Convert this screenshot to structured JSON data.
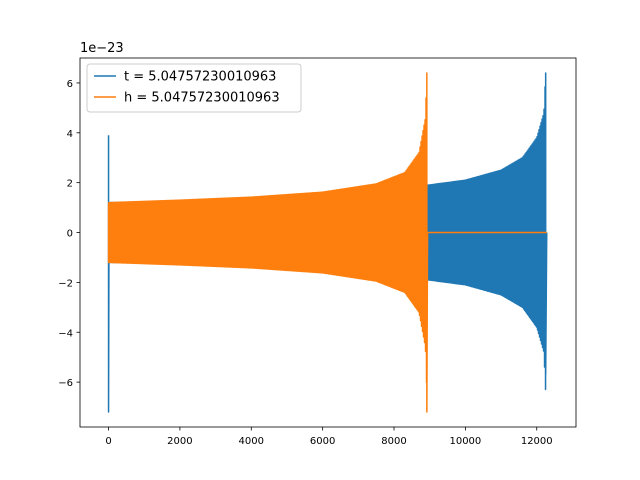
{
  "chart_data": {
    "type": "line",
    "title": "",
    "xlabel": "",
    "ylabel": "",
    "y_offset_text": "1e−23",
    "xlim": [
      -800,
      13100
    ],
    "ylim": [
      -7.8,
      7.0
    ],
    "x_ticks": [
      0,
      2000,
      4000,
      6000,
      8000,
      10000,
      12000
    ],
    "x_tick_labels": [
      "0",
      "2000",
      "4000",
      "6000",
      "8000",
      "10000",
      "12000"
    ],
    "y_ticks": [
      -6,
      -4,
      -2,
      0,
      2,
      4,
      6
    ],
    "y_tick_labels": [
      "−6",
      "−4",
      "−2",
      "0",
      "2",
      "4",
      "6"
    ],
    "grid": false,
    "legend_position": "upper-left",
    "series": [
      {
        "name": "t = 5.04757230010963",
        "color": "#1f77b4",
        "kind": "oscillating-envelope",
        "x_start": 0,
        "x_end": 12280,
        "initial_spike": {
          "x": 0,
          "max": 3.9,
          "min": -7.2
        },
        "envelope": [
          [
            0,
            1.2
          ],
          [
            2000,
            1.26
          ],
          [
            4000,
            1.35
          ],
          [
            6000,
            1.5
          ],
          [
            8000,
            1.72
          ],
          [
            10000,
            2.1
          ],
          [
            11000,
            2.5
          ],
          [
            11600,
            3.0
          ],
          [
            12000,
            3.8
          ],
          [
            12200,
            4.8
          ]
        ],
        "peak": {
          "x": 12250,
          "max": 6.4,
          "min": -5.7
        }
      },
      {
        "name": "h = 5.04757230010963",
        "color": "#ff7f0e",
        "kind": "oscillating-envelope",
        "x_start": 0,
        "x_end": 8940,
        "initial_spike": {
          "x": 0,
          "max": 1.2,
          "min": -1.2
        },
        "envelope": [
          [
            0,
            1.2
          ],
          [
            2000,
            1.3
          ],
          [
            4000,
            1.42
          ],
          [
            6000,
            1.62
          ],
          [
            7500,
            1.95
          ],
          [
            8300,
            2.4
          ],
          [
            8700,
            3.2
          ],
          [
            8880,
            4.6
          ]
        ],
        "peak": {
          "x": 8920,
          "max": 6.4,
          "min": -7.2
        },
        "tail": {
          "x_start": 8940,
          "x_end": 12280,
          "value": 0.0
        }
      }
    ]
  }
}
